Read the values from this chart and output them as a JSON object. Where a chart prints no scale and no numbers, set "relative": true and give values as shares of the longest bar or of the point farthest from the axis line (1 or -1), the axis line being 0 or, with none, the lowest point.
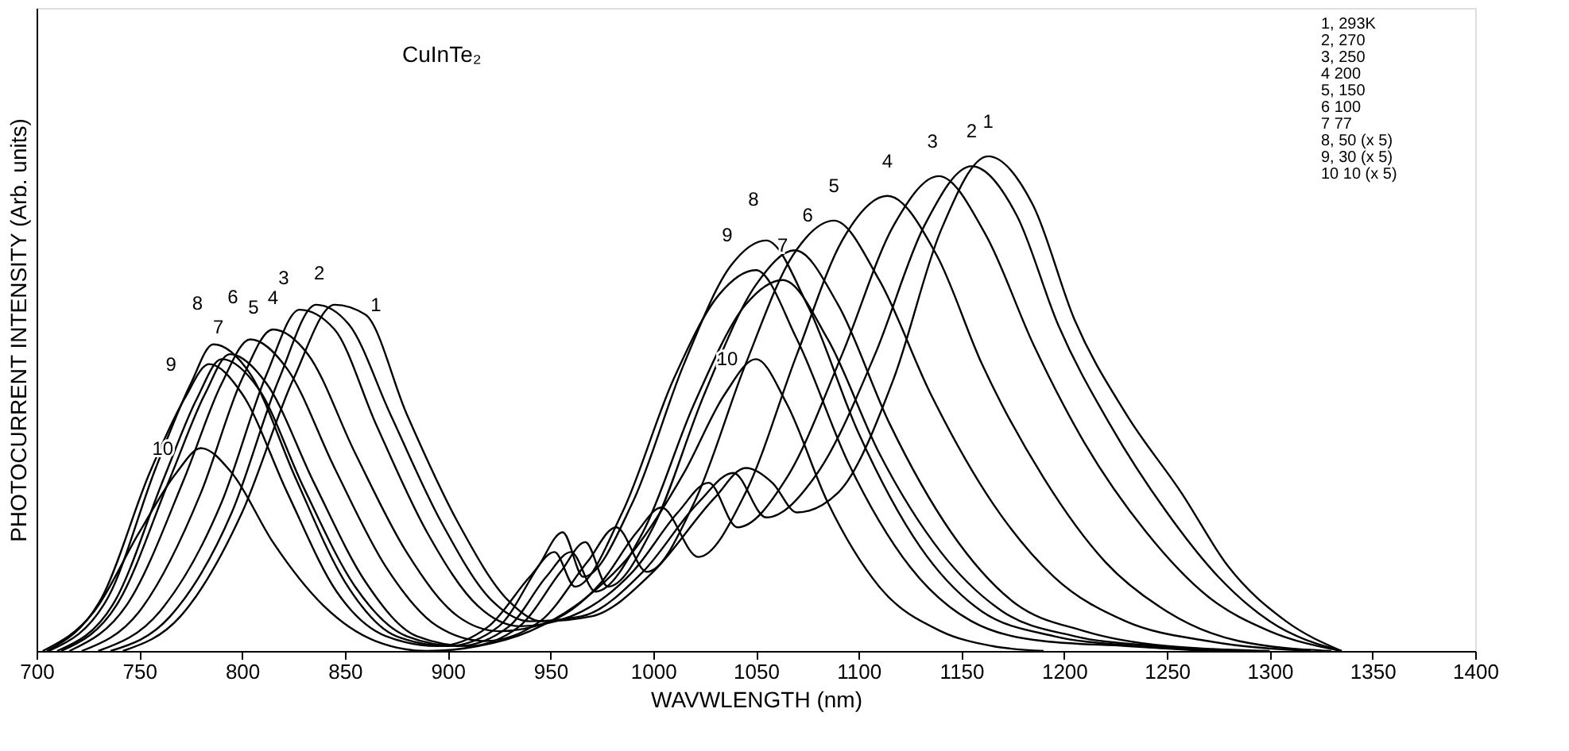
{
  "chart_data": {
    "type": "line",
    "relative": true,
    "xlabel": "WAVWLENGTH (nm)",
    "ylabel": "PHOTOCURRENT INTENSITY (Arb. units)",
    "xlim": [
      700,
      1400
    ],
    "xticks": [
      700,
      750,
      800,
      850,
      900,
      950,
      1000,
      1050,
      1100,
      1150,
      1200,
      1250,
      1300,
      1350,
      1400
    ],
    "grid": false,
    "legend": false,
    "marker": "none",
    "line_style": "solid",
    "series": [
      {
        "color": "#000000",
        "x": [
          742,
          770,
          800,
          825,
          845,
          860,
          880,
          905,
          930,
          946,
          970,
          1000,
          1030,
          1045,
          1058,
          1070,
          1090,
          1117,
          1140,
          1163,
          1185,
          1205,
          1230,
          1257,
          1280,
          1308,
          1335
        ],
        "values": [
          0,
          0.07,
          0.28,
          0.55,
          0.7,
          0.68,
          0.48,
          0.26,
          0.1,
          0.06,
          0.07,
          0.16,
          0.31,
          0.37,
          0.34,
          0.28,
          0.32,
          0.55,
          0.85,
          1.0,
          0.9,
          0.67,
          0.48,
          0.32,
          0.17,
          0.06,
          0
        ]
      },
      {
        "color": "#000000",
        "x": [
          736,
          765,
          795,
          818,
          836,
          852,
          872,
          897,
          922,
          940,
          965,
          995,
          1022,
          1039,
          1055,
          1080,
          1108,
          1132,
          1155,
          1177,
          1197,
          1222,
          1250,
          1275,
          1300,
          1335
        ],
        "values": [
          0,
          0.07,
          0.28,
          0.55,
          0.7,
          0.66,
          0.48,
          0.26,
          0.1,
          0.06,
          0.07,
          0.16,
          0.3,
          0.36,
          0.27,
          0.36,
          0.6,
          0.86,
          0.98,
          0.88,
          0.66,
          0.46,
          0.28,
          0.15,
          0.06,
          0
        ]
      },
      {
        "color": "#000000",
        "x": [
          730,
          760,
          790,
          812,
          828,
          845,
          865,
          890,
          915,
          935,
          960,
          990,
          1012,
          1027,
          1041,
          1065,
          1092,
          1117,
          1139,
          1162,
          1185,
          1210,
          1240,
          1270,
          1300,
          1335
        ],
        "values": [
          0,
          0.08,
          0.3,
          0.56,
          0.69,
          0.65,
          0.46,
          0.24,
          0.09,
          0.05,
          0.07,
          0.16,
          0.28,
          0.34,
          0.25,
          0.35,
          0.6,
          0.86,
          0.96,
          0.84,
          0.62,
          0.42,
          0.24,
          0.11,
          0.04,
          0
        ]
      },
      {
        "color": "#000000",
        "x": [
          722,
          750,
          780,
          800,
          815,
          832,
          855,
          880,
          905,
          925,
          950,
          975,
          992,
          1004,
          1022,
          1045,
          1070,
          1092,
          1114,
          1138,
          1160,
          1190,
          1220,
          1250,
          1285,
          1330
        ],
        "values": [
          0,
          0.08,
          0.32,
          0.55,
          0.65,
          0.6,
          0.4,
          0.2,
          0.07,
          0.04,
          0.06,
          0.14,
          0.24,
          0.29,
          0.19,
          0.32,
          0.6,
          0.83,
          0.92,
          0.8,
          0.58,
          0.35,
          0.18,
          0.08,
          0.02,
          0
        ]
      },
      {
        "color": "#000000",
        "x": [
          716,
          745,
          772,
          790,
          804,
          822,
          845,
          870,
          895,
          918,
          945,
          968,
          982,
          997,
          1020,
          1045,
          1068,
          1088,
          1110,
          1135,
          1165,
          1195,
          1230,
          1270,
          1320
        ],
        "values": [
          0,
          0.1,
          0.35,
          0.54,
          0.63,
          0.57,
          0.37,
          0.17,
          0.05,
          0.02,
          0.06,
          0.18,
          0.25,
          0.16,
          0.3,
          0.58,
          0.8,
          0.87,
          0.75,
          0.52,
          0.3,
          0.15,
          0.06,
          0.02,
          0
        ]
      },
      {
        "color": "#000000",
        "x": [
          712,
          740,
          765,
          782,
          794,
          812,
          835,
          860,
          885,
          910,
          935,
          955,
          967,
          978,
          1000,
          1025,
          1050,
          1069,
          1090,
          1115,
          1145,
          1175,
          1210,
          1250,
          1300
        ],
        "values": [
          0,
          0.1,
          0.35,
          0.52,
          0.6,
          0.54,
          0.34,
          0.14,
          0.03,
          0.01,
          0.05,
          0.16,
          0.22,
          0.13,
          0.25,
          0.52,
          0.74,
          0.81,
          0.7,
          0.46,
          0.24,
          0.1,
          0.04,
          0.01,
          0
        ]
      },
      {
        "color": "#000000",
        "x": [
          710,
          738,
          762,
          778,
          790,
          808,
          830,
          855,
          880,
          905,
          930,
          948,
          960,
          972,
          995,
          1020,
          1045,
          1063,
          1085,
          1110,
          1140,
          1170,
          1205,
          1245,
          1290
        ],
        "values": [
          0,
          0.1,
          0.35,
          0.51,
          0.59,
          0.53,
          0.33,
          0.13,
          0.03,
          0.01,
          0.05,
          0.15,
          0.2,
          0.12,
          0.24,
          0.5,
          0.7,
          0.75,
          0.63,
          0.4,
          0.2,
          0.08,
          0.03,
          0.01,
          0
        ]
      },
      {
        "color": "#000000",
        "x": [
          706,
          735,
          758,
          775,
          786,
          804,
          826,
          850,
          875,
          900,
          925,
          944,
          956,
          966,
          990,
          1015,
          1038,
          1055,
          1075,
          1100,
          1130,
          1160,
          1195,
          1235,
          1280
        ],
        "values": [
          0,
          0.11,
          0.37,
          0.54,
          0.62,
          0.56,
          0.35,
          0.14,
          0.03,
          0.01,
          0.05,
          0.17,
          0.24,
          0.15,
          0.3,
          0.58,
          0.78,
          0.83,
          0.7,
          0.44,
          0.21,
          0.08,
          0.03,
          0.01,
          0
        ]
      },
      {
        "color": "#000000",
        "x": [
          705,
          732,
          755,
          772,
          784,
          800,
          822,
          846,
          870,
          895,
          920,
          940,
          952,
          962,
          985,
          1010,
          1032,
          1050,
          1070,
          1095,
          1125,
          1155,
          1190,
          1230,
          1270
        ],
        "values": [
          0,
          0.11,
          0.36,
          0.51,
          0.58,
          0.52,
          0.32,
          0.12,
          0.03,
          0.01,
          0.05,
          0.15,
          0.2,
          0.13,
          0.28,
          0.55,
          0.72,
          0.77,
          0.63,
          0.38,
          0.17,
          0.06,
          0.02,
          0.01,
          0
        ]
      },
      {
        "color": "#000000",
        "x": [
          703,
          728,
          750,
          768,
          780,
          795,
          815,
          840,
          865,
          890,
          915,
          940,
          965,
          990,
          1015,
          1035,
          1050,
          1065,
          1085,
          1110,
          1140,
          1165,
          1190
        ],
        "values": [
          0,
          0.08,
          0.24,
          0.36,
          0.41,
          0.36,
          0.22,
          0.09,
          0.02,
          0.0,
          0.01,
          0.04,
          0.1,
          0.2,
          0.36,
          0.52,
          0.59,
          0.5,
          0.3,
          0.13,
          0.04,
          0.01,
          0
        ]
      }
    ],
    "annotations": [
      "CuInTe₂",
      "1, 293K",
      "2, 270",
      "3, 250",
      "4  200",
      "5, 150",
      "6  100",
      "7    77",
      "8,   50  (x 5)",
      "9,   30  (x 5)",
      "10    10  (x 5)",
      {
        "text": "1",
        "x": 845,
        "y": 0.7
      },
      {
        "text": "2",
        "x": 836,
        "y": 0.7
      },
      {
        "text": "3",
        "x": 828,
        "y": 0.69
      },
      {
        "text": "4",
        "x": 815,
        "y": 0.65
      },
      {
        "text": "5",
        "x": 804,
        "y": 0.63
      },
      {
        "text": "6",
        "x": 794,
        "y": 0.6
      },
      {
        "text": "7",
        "x": 790,
        "y": 0.59
      },
      {
        "text": "8",
        "x": 786,
        "y": 0.62
      },
      {
        "text": "9",
        "x": 784,
        "y": 0.58
      },
      {
        "text": "10",
        "x": 780,
        "y": 0.41
      },
      {
        "text": "1",
        "x": 1163,
        "y": 1.0
      },
      {
        "text": "2",
        "x": 1155,
        "y": 0.98
      },
      {
        "text": "3",
        "x": 1139,
        "y": 0.96
      },
      {
        "text": "4",
        "x": 1114,
        "y": 0.92
      },
      {
        "text": "5",
        "x": 1088,
        "y": 0.87
      },
      {
        "text": "6",
        "x": 1069,
        "y": 0.81
      },
      {
        "text": "7",
        "x": 1063,
        "y": 0.75
      },
      {
        "text": "8",
        "x": 1055,
        "y": 0.83
      },
      {
        "text": "9",
        "x": 1050,
        "y": 0.77
      },
      {
        "text": "10",
        "x": 1050,
        "y": 0.59
      }
    ]
  }
}
